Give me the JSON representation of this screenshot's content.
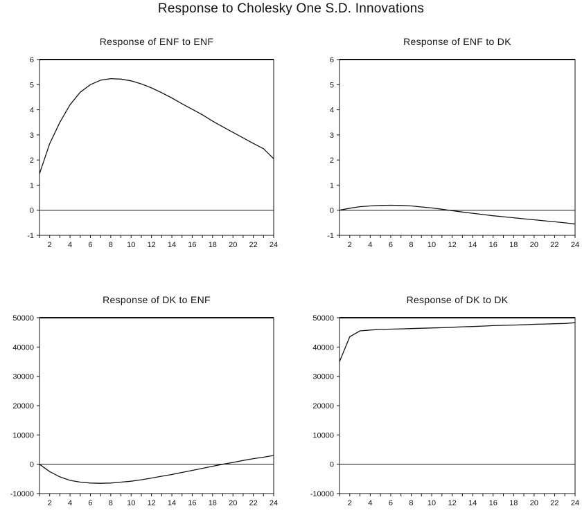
{
  "title": "Response to Cholesky One S.D. Innovations",
  "chart_data": [
    {
      "type": "line",
      "title": "Response of ENF to ENF",
      "xlabel": "",
      "ylabel": "",
      "x": [
        1,
        2,
        3,
        4,
        5,
        6,
        7,
        8,
        9,
        10,
        11,
        12,
        13,
        14,
        15,
        16,
        17,
        18,
        19,
        20,
        21,
        22,
        23,
        24
      ],
      "series": [
        {
          "values": [
            1.45,
            2.65,
            3.5,
            4.2,
            4.7,
            5.0,
            5.18,
            5.24,
            5.22,
            5.15,
            5.03,
            4.87,
            4.68,
            4.47,
            4.24,
            4.02,
            3.8,
            3.55,
            3.32,
            3.1,
            2.88,
            2.66,
            2.45,
            2.05
          ]
        }
      ],
      "xticks": [
        2,
        4,
        6,
        8,
        10,
        12,
        14,
        16,
        18,
        20,
        22,
        24
      ],
      "yticks": [
        -1,
        0,
        1,
        2,
        3,
        4,
        5,
        6
      ],
      "xlim": [
        1,
        24
      ],
      "ylim": [
        -1,
        6
      ],
      "zero_line": true,
      "grid": false
    },
    {
      "type": "line",
      "title": "Response of ENF to DK",
      "xlabel": "",
      "ylabel": "",
      "x": [
        1,
        2,
        3,
        4,
        5,
        6,
        7,
        8,
        9,
        10,
        11,
        12,
        13,
        14,
        15,
        16,
        17,
        18,
        19,
        20,
        21,
        22,
        23,
        24
      ],
      "series": [
        {
          "values": [
            0.0,
            0.08,
            0.14,
            0.17,
            0.19,
            0.2,
            0.19,
            0.17,
            0.13,
            0.09,
            0.04,
            -0.02,
            -0.07,
            -0.12,
            -0.17,
            -0.22,
            -0.26,
            -0.3,
            -0.34,
            -0.38,
            -0.42,
            -0.46,
            -0.5,
            -0.55
          ]
        }
      ],
      "xticks": [
        2,
        4,
        6,
        8,
        10,
        12,
        14,
        16,
        18,
        20,
        22,
        24
      ],
      "yticks": [
        -1,
        0,
        1,
        2,
        3,
        4,
        5,
        6
      ],
      "xlim": [
        1,
        24
      ],
      "ylim": [
        -1,
        6
      ],
      "zero_line": true,
      "grid": false
    },
    {
      "type": "line",
      "title": "Response of DK to ENF",
      "xlabel": "",
      "ylabel": "",
      "x": [
        1,
        2,
        3,
        4,
        5,
        6,
        7,
        8,
        9,
        10,
        11,
        12,
        13,
        14,
        15,
        16,
        17,
        18,
        19,
        20,
        21,
        22,
        23,
        24
      ],
      "series": [
        {
          "values": [
            0,
            -2500,
            -4300,
            -5500,
            -6100,
            -6400,
            -6500,
            -6400,
            -6100,
            -5800,
            -5300,
            -4700,
            -4100,
            -3500,
            -2800,
            -2100,
            -1400,
            -700,
            0,
            600,
            1300,
            1900,
            2400,
            3000
          ]
        }
      ],
      "xticks": [
        2,
        4,
        6,
        8,
        10,
        12,
        14,
        16,
        18,
        20,
        22,
        24
      ],
      "yticks": [
        -10000,
        0,
        10000,
        20000,
        30000,
        40000,
        50000
      ],
      "xlim": [
        1,
        24
      ],
      "ylim": [
        -10000,
        50000
      ],
      "zero_line": true,
      "grid": false
    },
    {
      "type": "line",
      "title": "Response of DK to DK",
      "xlabel": "",
      "ylabel": "",
      "x": [
        1,
        2,
        3,
        4,
        5,
        6,
        7,
        8,
        9,
        10,
        11,
        12,
        13,
        14,
        15,
        16,
        17,
        18,
        19,
        20,
        21,
        22,
        23,
        24
      ],
      "series": [
        {
          "values": [
            35000,
            43500,
            45500,
            45800,
            46000,
            46100,
            46200,
            46300,
            46400,
            46500,
            46600,
            46750,
            46900,
            47000,
            47150,
            47300,
            47400,
            47500,
            47600,
            47750,
            47850,
            47950,
            48050,
            48300
          ]
        }
      ],
      "xticks": [
        2,
        4,
        6,
        8,
        10,
        12,
        14,
        16,
        18,
        20,
        22,
        24
      ],
      "yticks": [
        -10000,
        0,
        10000,
        20000,
        30000,
        40000,
        50000
      ],
      "xlim": [
        1,
        24
      ],
      "ylim": [
        -10000,
        50000
      ],
      "zero_line": true,
      "grid": false
    }
  ]
}
